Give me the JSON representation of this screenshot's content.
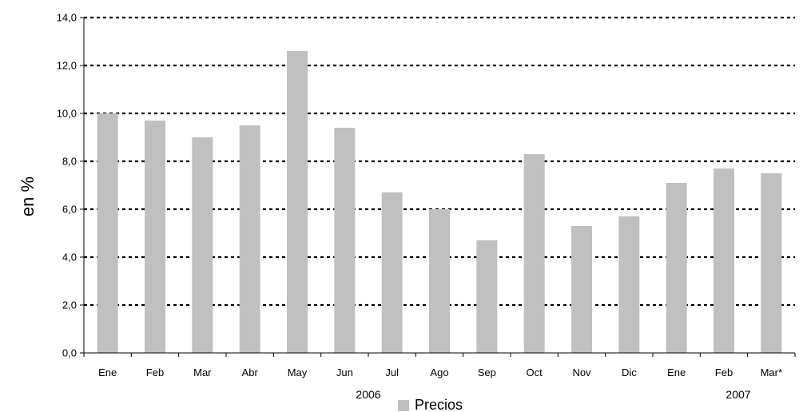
{
  "chart_data": {
    "type": "bar",
    "categories": [
      "Ene",
      "Feb",
      "Mar",
      "Abr",
      "May",
      "Jun",
      "Jul",
      "Ago",
      "Sep",
      "Oct",
      "Nov",
      "Dic",
      "Ene",
      "Feb",
      "Mar*"
    ],
    "groups": [
      {
        "label": "2006",
        "from": 0,
        "to": 11
      },
      {
        "label": "2007",
        "from": 12,
        "to": 14
      }
    ],
    "series": [
      {
        "name": "Precios",
        "values": [
          10.0,
          9.7,
          9.0,
          9.5,
          12.6,
          9.4,
          6.7,
          6.0,
          4.7,
          8.3,
          5.3,
          5.7,
          7.1,
          7.7,
          7.5
        ],
        "color": "#c0c0c0"
      }
    ],
    "title": "",
    "xlabel": "",
    "ylabel": "en %",
    "ylim": [
      0,
      14
    ],
    "yticks": [
      "0,0",
      "2,0",
      "4,0",
      "6,0",
      "8,0",
      "10,0",
      "12,0",
      "14,0"
    ],
    "grid": true,
    "grid_style": "dotted",
    "legend_position": "bottom-center",
    "axis_color": "#000000"
  }
}
